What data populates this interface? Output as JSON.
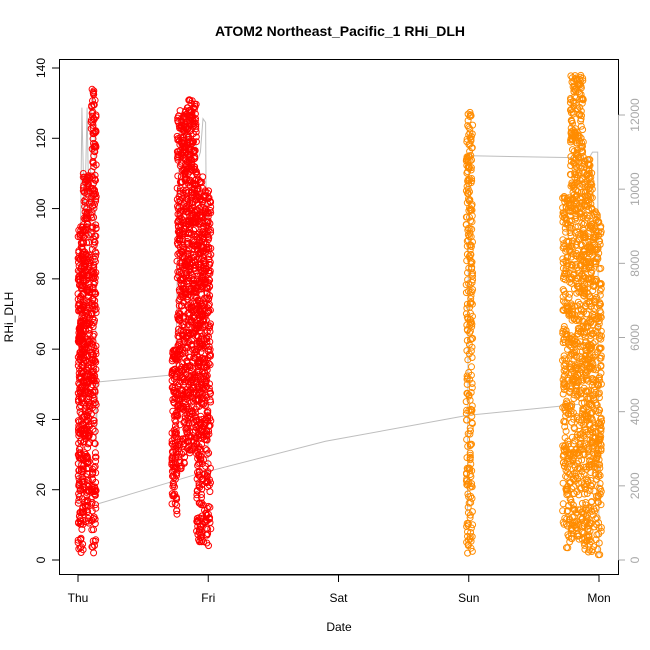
{
  "chart_data": {
    "type": "scatter",
    "title": "ATOM2 Northeast_Pacific_1 RHi_DLH",
    "xlabel": "Date",
    "ylabel": "RHi_DLH",
    "x_ticks": [
      "Thu",
      "Fri",
      "Sat",
      "Sun",
      "Mon"
    ],
    "y_ticks": [
      "0",
      "20",
      "40",
      "60",
      "80",
      "100",
      "120",
      "140"
    ],
    "y_right_ticks": [
      "0",
      "2000",
      "4000",
      "6000",
      "8000",
      "10000",
      "12000"
    ],
    "xlim": [
      0,
      4
    ],
    "ylim": [
      0,
      140
    ],
    "y_right_lim": [
      0,
      12700
    ],
    "grid": false,
    "legend": "none",
    "marker": "open-circle",
    "colors": {
      "day1": "#ff0000",
      "day2": "#ff8c00",
      "altitude_line": "#bebebe",
      "right_axis": "#a8a8a8",
      "frame": "#000000"
    },
    "series": [
      {
        "color_key": "day1",
        "clusters": [
          {
            "x_range": [
              0.0,
              0.04
            ],
            "y_range": [
              2,
              95
            ],
            "density": 260
          },
          {
            "x_range": [
              0.04,
              0.09
            ],
            "y_range": [
              10,
              110
            ],
            "density": 300
          },
          {
            "x_range": [
              0.1,
              0.14
            ],
            "y_range": [
              2,
              134
            ],
            "density": 260
          },
          {
            "x_range": [
              0.72,
              0.76
            ],
            "y_range": [
              12,
              60
            ],
            "density": 120
          },
          {
            "x_range": [
              0.76,
              0.82
            ],
            "y_range": [
              25,
              128
            ],
            "density": 300
          },
          {
            "x_range": [
              0.82,
              0.91
            ],
            "y_range": [
              30,
              131
            ],
            "density": 520
          },
          {
            "x_range": [
              0.91,
              0.96
            ],
            "y_range": [
              4,
              110
            ],
            "density": 300
          },
          {
            "x_range": [
              0.96,
              1.02
            ],
            "y_range": [
              4,
              106
            ],
            "density": 260
          }
        ]
      },
      {
        "color_key": "day2",
        "clusters": [
          {
            "x_range": [
              2.98,
              3.03
            ],
            "y_range": [
              1,
              128
            ],
            "density": 260
          },
          {
            "x_range": [
              3.72,
              3.78
            ],
            "y_range": [
              2,
              104
            ],
            "density": 220
          },
          {
            "x_range": [
              3.78,
              3.88
            ],
            "y_range": [
              5,
              138
            ],
            "density": 520
          },
          {
            "x_range": [
              3.88,
              3.95
            ],
            "y_range": [
              2,
              114
            ],
            "density": 360
          },
          {
            "x_range": [
              3.95,
              4.02
            ],
            "y_range": [
              1,
              100
            ],
            "density": 240
          }
        ]
      }
    ],
    "altitude_segments": [
      [
        [
          0.0,
          1500
        ],
        [
          0.02,
          9000
        ],
        [
          0.03,
          12200
        ],
        [
          0.05,
          9000
        ],
        [
          0.07,
          12200
        ],
        [
          0.09,
          8000
        ],
        [
          0.1,
          12000
        ],
        [
          0.11,
          12500
        ],
        [
          0.12,
          12400
        ],
        [
          0.13,
          12300
        ],
        [
          0.14,
          3000
        ],
        [
          0.15,
          4800
        ]
      ],
      [
        [
          0.15,
          4800
        ],
        [
          0.75,
          5000
        ]
      ],
      [
        [
          0.75,
          5000
        ],
        [
          0.78,
          11800
        ],
        [
          0.8,
          11900
        ],
        [
          0.82,
          11300
        ],
        [
          0.84,
          11800
        ],
        [
          0.86,
          10500
        ],
        [
          0.88,
          11000
        ],
        [
          0.9,
          11300
        ],
        [
          0.92,
          10800
        ],
        [
          0.94,
          11000
        ],
        [
          0.96,
          11900
        ],
        [
          0.98,
          11800
        ],
        [
          1.0,
          2000
        ]
      ],
      [
        [
          0.14,
          1500
        ],
        [
          0.9,
          2300
        ],
        [
          1.9,
          3200
        ],
        [
          2.99,
          3900
        ]
      ],
      [
        [
          2.99,
          1300
        ],
        [
          3.0,
          11000
        ],
        [
          3.01,
          10800
        ],
        [
          3.02,
          10900
        ]
      ],
      [
        [
          3.02,
          10900
        ],
        [
          3.8,
          10850
        ]
      ],
      [
        [
          3.8,
          10850
        ],
        [
          3.83,
          11000
        ],
        [
          3.86,
          10900
        ],
        [
          3.9,
          10700
        ],
        [
          3.95,
          11000
        ],
        [
          3.99,
          11000
        ],
        [
          4.0,
          150
        ]
      ],
      [
        [
          2.99,
          3900
        ],
        [
          3.85,
          4200
        ]
      ]
    ]
  }
}
